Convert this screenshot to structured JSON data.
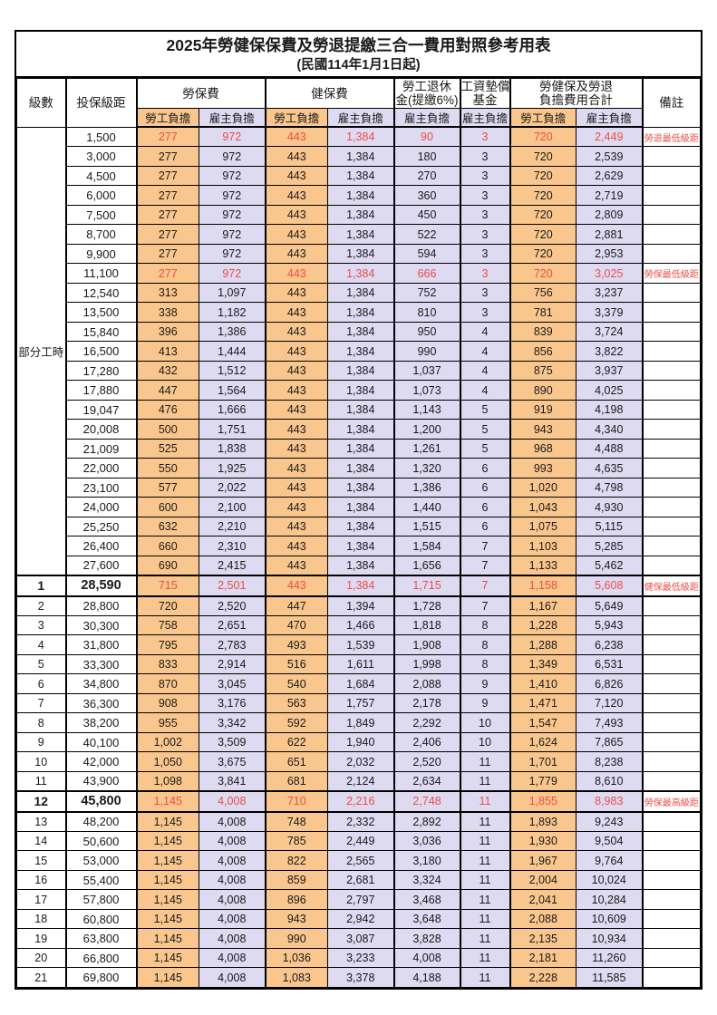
{
  "title": "2025年勞健保保費及勞退提繳三合一費用對照參考用表",
  "subtitle": "(民國114年1月1日起)",
  "colors": {
    "employee_column_bg": "#F9C68D",
    "employer_column_bg": "#DDDAF1",
    "highlight_text": "#EE4E47",
    "border": "#000000"
  },
  "header": {
    "level": "級數",
    "bracket": "投保級距",
    "labor_insurance": "勞保費",
    "health_insurance": "健保費",
    "pension_line1": "勞工退休",
    "pension_line2": "金(提繳6%)",
    "wage_fund_line1": "工資墊償",
    "wage_fund_line2": "基金",
    "total_line1": "勞健保及勞退",
    "total_line2": "負擔費用合計",
    "remark": "備註",
    "employee_share": "勞工負擔",
    "employer_share": "雇主負擔"
  },
  "table": {
    "part_time_label": "部分工時",
    "part_time_span": 23,
    "columns": [
      "level",
      "bracket",
      "labor_employee",
      "labor_employer",
      "health_employee",
      "health_employer",
      "pension_employer",
      "wage_fund_employer",
      "total_employee",
      "total_employer",
      "remark"
    ],
    "col_names": [
      "cell-level",
      "cell-bracket",
      "cell-labor-employee",
      "cell-labor-employer",
      "cell-health-employee",
      "cell-health-employer",
      "cell-pension-employer",
      "cell-wage-fund-employer",
      "cell-total-employee",
      "cell-total-employer",
      "cell-remark"
    ],
    "col_classes": [
      "c-level",
      "c-bracket bl2",
      "emp bl2 val",
      "er val",
      "emp bl2 val",
      "er val",
      "er bl2 val",
      "er bl2 val",
      "emp bl2 val",
      "er val",
      "c-remark bl2"
    ],
    "highlight_rows": [
      0,
      7,
      23,
      34
    ],
    "bold_rows": [
      23,
      34
    ],
    "thick_rows": [
      23,
      34
    ],
    "rows": [
      [
        "",
        "1,500",
        "277",
        "972",
        "443",
        "1,384",
        "90",
        "3",
        "720",
        "2,449",
        "勞退最低級距"
      ],
      [
        "",
        "3,000",
        "277",
        "972",
        "443",
        "1,384",
        "180",
        "3",
        "720",
        "2,539",
        ""
      ],
      [
        "",
        "4,500",
        "277",
        "972",
        "443",
        "1,384",
        "270",
        "3",
        "720",
        "2,629",
        ""
      ],
      [
        "",
        "6,000",
        "277",
        "972",
        "443",
        "1,384",
        "360",
        "3",
        "720",
        "2,719",
        ""
      ],
      [
        "",
        "7,500",
        "277",
        "972",
        "443",
        "1,384",
        "450",
        "3",
        "720",
        "2,809",
        ""
      ],
      [
        "",
        "8,700",
        "277",
        "972",
        "443",
        "1,384",
        "522",
        "3",
        "720",
        "2,881",
        ""
      ],
      [
        "",
        "9,900",
        "277",
        "972",
        "443",
        "1,384",
        "594",
        "3",
        "720",
        "2,953",
        ""
      ],
      [
        "",
        "11,100",
        "277",
        "972",
        "443",
        "1,384",
        "666",
        "3",
        "720",
        "3,025",
        "勞保最低級距"
      ],
      [
        "",
        "12,540",
        "313",
        "1,097",
        "443",
        "1,384",
        "752",
        "3",
        "756",
        "3,237",
        ""
      ],
      [
        "",
        "13,500",
        "338",
        "1,182",
        "443",
        "1,384",
        "810",
        "3",
        "781",
        "3,379",
        ""
      ],
      [
        "",
        "15,840",
        "396",
        "1,386",
        "443",
        "1,384",
        "950",
        "4",
        "839",
        "3,724",
        ""
      ],
      [
        "",
        "16,500",
        "413",
        "1,444",
        "443",
        "1,384",
        "990",
        "4",
        "856",
        "3,822",
        ""
      ],
      [
        "",
        "17,280",
        "432",
        "1,512",
        "443",
        "1,384",
        "1,037",
        "4",
        "875",
        "3,937",
        ""
      ],
      [
        "",
        "17,880",
        "447",
        "1,564",
        "443",
        "1,384",
        "1,073",
        "4",
        "890",
        "4,025",
        ""
      ],
      [
        "",
        "19,047",
        "476",
        "1,666",
        "443",
        "1,384",
        "1,143",
        "5",
        "919",
        "4,198",
        ""
      ],
      [
        "",
        "20,008",
        "500",
        "1,751",
        "443",
        "1,384",
        "1,200",
        "5",
        "943",
        "4,340",
        ""
      ],
      [
        "",
        "21,009",
        "525",
        "1,838",
        "443",
        "1,384",
        "1,261",
        "5",
        "968",
        "4,488",
        ""
      ],
      [
        "",
        "22,000",
        "550",
        "1,925",
        "443",
        "1,384",
        "1,320",
        "6",
        "993",
        "4,635",
        ""
      ],
      [
        "",
        "23,100",
        "577",
        "2,022",
        "443",
        "1,384",
        "1,386",
        "6",
        "1,020",
        "4,798",
        ""
      ],
      [
        "",
        "24,000",
        "600",
        "2,100",
        "443",
        "1,384",
        "1,440",
        "6",
        "1,043",
        "4,930",
        ""
      ],
      [
        "",
        "25,250",
        "632",
        "2,210",
        "443",
        "1,384",
        "1,515",
        "6",
        "1,075",
        "5,115",
        ""
      ],
      [
        "",
        "26,400",
        "660",
        "2,310",
        "443",
        "1,384",
        "1,584",
        "7",
        "1,103",
        "5,285",
        ""
      ],
      [
        "",
        "27,600",
        "690",
        "2,415",
        "443",
        "1,384",
        "1,656",
        "7",
        "1,133",
        "5,462",
        ""
      ],
      [
        "1",
        "28,590",
        "715",
        "2,501",
        "443",
        "1,384",
        "1,715",
        "7",
        "1,158",
        "5,608",
        "健保最低級距"
      ],
      [
        "2",
        "28,800",
        "720",
        "2,520",
        "447",
        "1,394",
        "1,728",
        "7",
        "1,167",
        "5,649",
        ""
      ],
      [
        "3",
        "30,300",
        "758",
        "2,651",
        "470",
        "1,466",
        "1,818",
        "8",
        "1,228",
        "5,943",
        ""
      ],
      [
        "4",
        "31,800",
        "795",
        "2,783",
        "493",
        "1,539",
        "1,908",
        "8",
        "1,288",
        "6,238",
        ""
      ],
      [
        "5",
        "33,300",
        "833",
        "2,914",
        "516",
        "1,611",
        "1,998",
        "8",
        "1,349",
        "6,531",
        ""
      ],
      [
        "6",
        "34,800",
        "870",
        "3,045",
        "540",
        "1,684",
        "2,088",
        "9",
        "1,410",
        "6,826",
        ""
      ],
      [
        "7",
        "36,300",
        "908",
        "3,176",
        "563",
        "1,757",
        "2,178",
        "9",
        "1,471",
        "7,120",
        ""
      ],
      [
        "8",
        "38,200",
        "955",
        "3,342",
        "592",
        "1,849",
        "2,292",
        "10",
        "1,547",
        "7,493",
        ""
      ],
      [
        "9",
        "40,100",
        "1,002",
        "3,509",
        "622",
        "1,940",
        "2,406",
        "10",
        "1,624",
        "7,865",
        ""
      ],
      [
        "10",
        "42,000",
        "1,050",
        "3,675",
        "651",
        "2,032",
        "2,520",
        "11",
        "1,701",
        "8,238",
        ""
      ],
      [
        "11",
        "43,900",
        "1,098",
        "3,841",
        "681",
        "2,124",
        "2,634",
        "11",
        "1,779",
        "8,610",
        ""
      ],
      [
        "12",
        "45,800",
        "1,145",
        "4,008",
        "710",
        "2,216",
        "2,748",
        "11",
        "1,855",
        "8,983",
        "勞保最高級距"
      ],
      [
        "13",
        "48,200",
        "1,145",
        "4,008",
        "748",
        "2,332",
        "2,892",
        "11",
        "1,893",
        "9,243",
        ""
      ],
      [
        "14",
        "50,600",
        "1,145",
        "4,008",
        "785",
        "2,449",
        "3,036",
        "11",
        "1,930",
        "9,504",
        ""
      ],
      [
        "15",
        "53,000",
        "1,145",
        "4,008",
        "822",
        "2,565",
        "3,180",
        "11",
        "1,967",
        "9,764",
        ""
      ],
      [
        "16",
        "55,400",
        "1,145",
        "4,008",
        "859",
        "2,681",
        "3,324",
        "11",
        "2,004",
        "10,024",
        ""
      ],
      [
        "17",
        "57,800",
        "1,145",
        "4,008",
        "896",
        "2,797",
        "3,468",
        "11",
        "2,041",
        "10,284",
        ""
      ],
      [
        "18",
        "60,800",
        "1,145",
        "4,008",
        "943",
        "2,942",
        "3,648",
        "11",
        "2,088",
        "10,609",
        ""
      ],
      [
        "19",
        "63,800",
        "1,145",
        "4,008",
        "990",
        "3,087",
        "3,828",
        "11",
        "2,135",
        "10,934",
        ""
      ],
      [
        "20",
        "66,800",
        "1,145",
        "4,008",
        "1,036",
        "3,233",
        "4,008",
        "11",
        "2,181",
        "11,260",
        ""
      ],
      [
        "21",
        "69,800",
        "1,145",
        "4,008",
        "1,083",
        "3,378",
        "4,188",
        "11",
        "2,228",
        "11,585",
        ""
      ]
    ]
  }
}
